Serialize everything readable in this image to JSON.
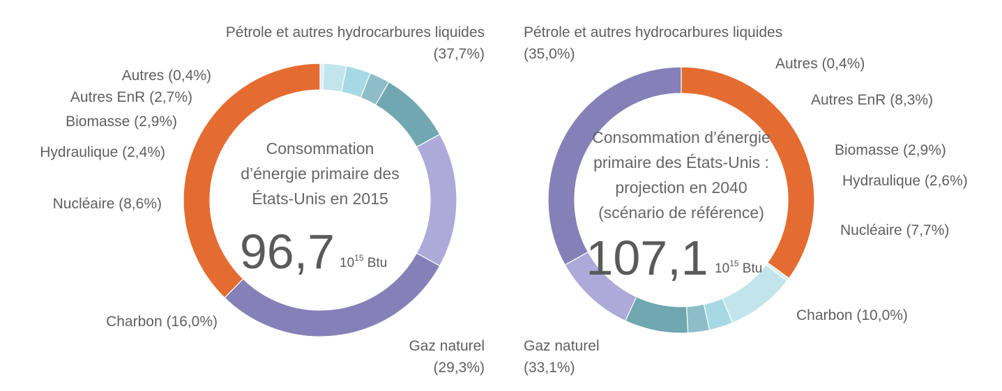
{
  "colors": {
    "petrole": "#E46C30",
    "autres": "#D9EEF1",
    "autres_enr": "#C2E5EB",
    "biomasse": "#A6D9E3",
    "hydraulique": "#8EBDC7",
    "nucleaire": "#70A7B1",
    "charbon": "#ADA9D9",
    "gaz": "#8680B8"
  },
  "chart_data": [
    {
      "type": "pie",
      "title_lines": [
        "Consommation",
        "d’énergie primaire des",
        "États-Unis en 2015"
      ],
      "total": "96,7",
      "unit_base": "10",
      "unit_exp": "15",
      "unit_name": " Btu",
      "slices": [
        {
          "key": "petrole",
          "value": 37.7,
          "label_lines": [
            "Pétrole et autres hydrocarbures liquides",
            "(37,7%)"
          ]
        },
        {
          "key": "gaz",
          "value": 29.3,
          "label_lines": [
            "Gaz naturel",
            "(29,3%)"
          ]
        },
        {
          "key": "charbon",
          "value": 16.0,
          "label_lines": [
            "Charbon (16,0%)"
          ]
        },
        {
          "key": "nucleaire",
          "value": 8.6,
          "label_lines": [
            "Nucléaire (8,6%)"
          ]
        },
        {
          "key": "hydraulique",
          "value": 2.4,
          "label_lines": [
            "Hydraulique (2,4%)"
          ]
        },
        {
          "key": "biomasse",
          "value": 2.9,
          "label_lines": [
            "Biomasse (2,9%)"
          ]
        },
        {
          "key": "autres_enr",
          "value": 2.7,
          "label_lines": [
            "Autres EnR (2,7%)"
          ]
        },
        {
          "key": "autres",
          "value": 0.4,
          "label_lines": [
            "Autres (0,4%)"
          ]
        }
      ]
    },
    {
      "type": "pie",
      "title_lines": [
        "Consommation d’énergie",
        "primaire des États-Unis :",
        "projection en 2040",
        "(scénario de référence)"
      ],
      "total": "107,1",
      "unit_base": "10",
      "unit_exp": "15",
      "unit_name": " Btu",
      "slices": [
        {
          "key": "petrole",
          "value": 35.0,
          "label_lines": [
            "Pétrole et autres hydrocarbures liquides",
            "(35,0%)"
          ]
        },
        {
          "key": "autres",
          "value": 0.4,
          "label_lines": [
            "Autres (0,4%)"
          ]
        },
        {
          "key": "autres_enr",
          "value": 8.3,
          "label_lines": [
            "Autres EnR (8,3%)"
          ]
        },
        {
          "key": "biomasse",
          "value": 2.9,
          "label_lines": [
            "Biomasse (2,9%)"
          ]
        },
        {
          "key": "hydraulique",
          "value": 2.6,
          "label_lines": [
            "Hydraulique (2,6%)"
          ]
        },
        {
          "key": "nucleaire",
          "value": 7.7,
          "label_lines": [
            "Nucléaire (7,7%)"
          ]
        },
        {
          "key": "charbon",
          "value": 10.0,
          "label_lines": [
            "Charbon (10,0%)"
          ]
        },
        {
          "key": "gaz",
          "value": 33.1,
          "label_lines": [
            "Gaz naturel",
            "(33,1%)"
          ]
        }
      ]
    }
  ]
}
